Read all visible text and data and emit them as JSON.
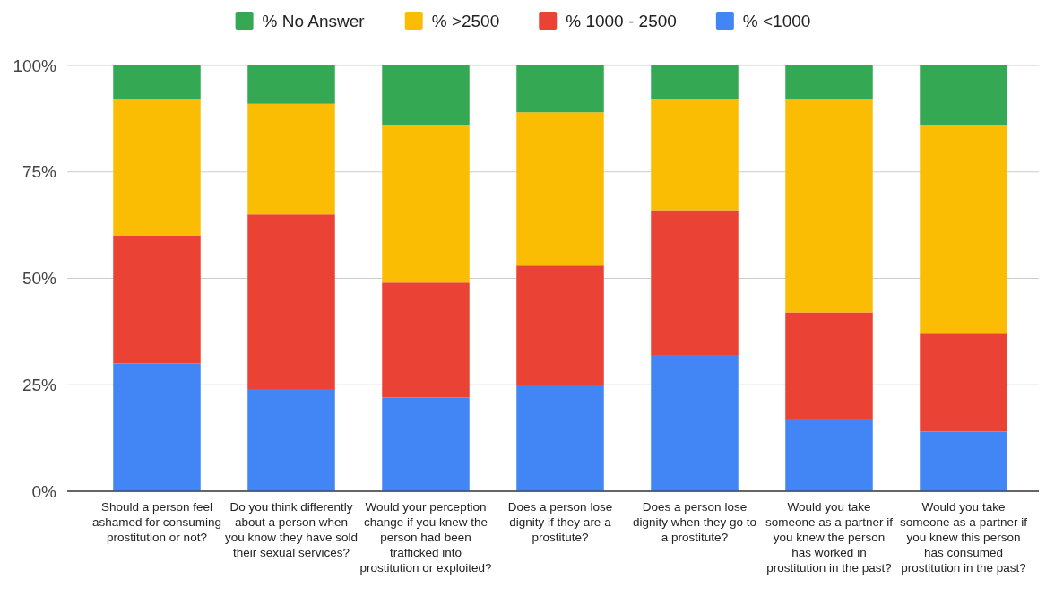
{
  "chart_data": {
    "type": "bar",
    "stacked": true,
    "categories": [
      "Should a person feel ashamed for consuming prostitution or not?",
      "Do you think differently about a person when you know they have sold their sexual services?",
      "Would your perception change if you knew the person had been trafficked into prostitution or exploited?",
      "Does a person lose dignity if they are a prostitute?",
      "Does a person lose dignity when they go to a prostitute?",
      "Would you take someone as a partner if you knew the person has worked in prostitution in the past?",
      "Would you take someone as a partner if you knew this person has consumed prostitution in the past?"
    ],
    "series": [
      {
        "name": "% <1000",
        "color": "#4285f4",
        "values": [
          30,
          24,
          22,
          25,
          32,
          17,
          14
        ]
      },
      {
        "name": "% 1000 - 2500",
        "color": "#ea4335",
        "values": [
          30,
          41,
          27,
          28,
          34,
          25,
          23
        ]
      },
      {
        "name": "% >2500",
        "color": "#fbbc04",
        "values": [
          32,
          26,
          37,
          36,
          26,
          50,
          49
        ]
      },
      {
        "name": "% No Answer",
        "color": "#34a853",
        "values": [
          8,
          9,
          14,
          11,
          8,
          8,
          14
        ]
      }
    ],
    "ylim": [
      0,
      100
    ],
    "yticks": [
      {
        "value": 0,
        "label": "0%"
      },
      {
        "value": 25,
        "label": "25%"
      },
      {
        "value": 50,
        "label": "50%"
      },
      {
        "value": 75,
        "label": "75%"
      },
      {
        "value": 100,
        "label": "100%"
      }
    ],
    "grid": "y",
    "legend": "top"
  }
}
